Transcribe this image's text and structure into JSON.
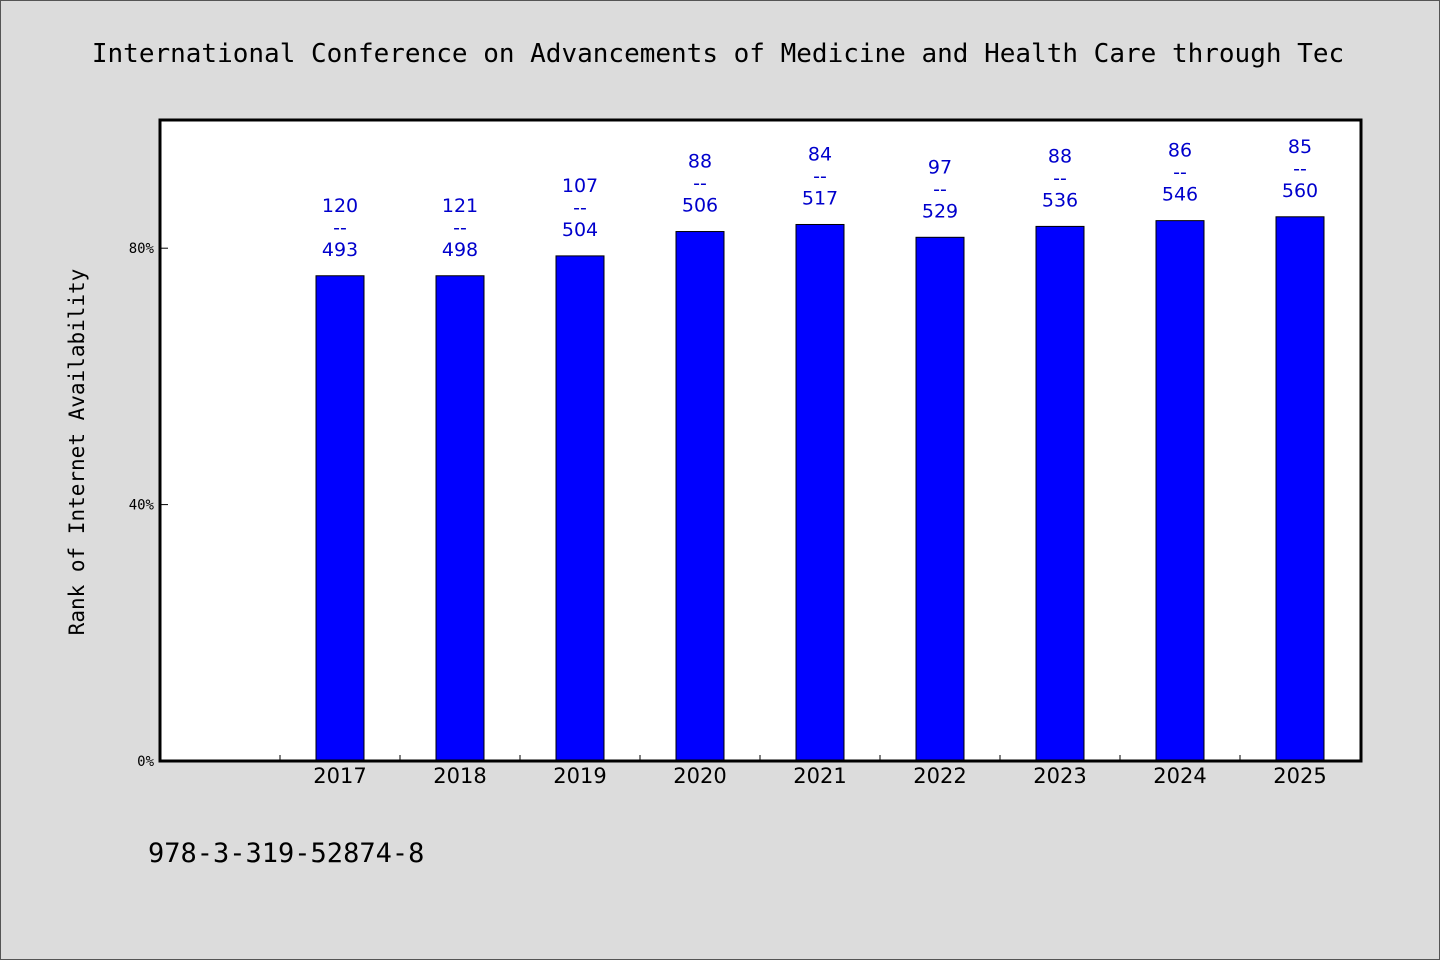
{
  "chart_data": {
    "type": "bar",
    "title": "International Conference on Advancements of Medicine and Health Care through Tec",
    "xlabel": "",
    "ylabel": "Rank of Internet Availability",
    "categories": [
      "2017",
      "2018",
      "2019",
      "2020",
      "2021",
      "2022",
      "2023",
      "2024",
      "2025"
    ],
    "values": [
      75.7,
      75.7,
      78.8,
      82.6,
      83.7,
      81.7,
      83.4,
      84.3,
      84.9
    ],
    "data_labels": [
      [
        "120",
        "--",
        "493"
      ],
      [
        "121",
        "--",
        "498"
      ],
      [
        "107",
        "--",
        "504"
      ],
      [
        "88",
        "--",
        "506"
      ],
      [
        "84",
        "--",
        "517"
      ],
      [
        "97",
        "--",
        "529"
      ],
      [
        "88",
        "--",
        "536"
      ],
      [
        "86",
        "--",
        "546"
      ],
      [
        "85",
        "--",
        "560"
      ]
    ],
    "ylim": [
      0,
      100
    ],
    "yticks": [
      0,
      40,
      80
    ],
    "ytick_labels": [
      "0%",
      "40%",
      "80%"
    ],
    "grid": false,
    "legend": "none",
    "colors": {
      "bar": "#0000ff",
      "data_label": "#0000cc",
      "plot_bg": "#ffffff",
      "page_bg": "#dcdcdc"
    }
  },
  "footer": {
    "isbn": "978-3-319-52874-8"
  }
}
